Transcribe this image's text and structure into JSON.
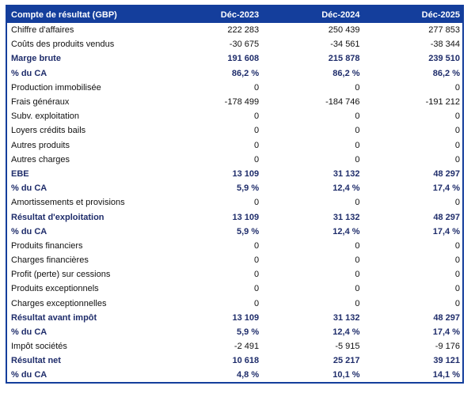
{
  "colors": {
    "header_bg": "#143E9C",
    "header_text": "#FFFFFF",
    "border": "#143E9C",
    "bold_text": "#1F2D6B",
    "body_text": "#111111",
    "background": "#FFFFFF"
  },
  "chart_data": {
    "type": "table",
    "title": "Compte de résultat (GBP)",
    "columns": [
      "Déc-2023",
      "Déc-2024",
      "Déc-2025"
    ],
    "rows": [
      {
        "label": "Chiffre d'affaires",
        "values": [
          "222 283",
          "250 439",
          "277 853"
        ],
        "bold": false
      },
      {
        "label": "Coûts des produits vendus",
        "values": [
          "-30 675",
          "-34 561",
          "-38 344"
        ],
        "bold": false
      },
      {
        "label": "Marge brute",
        "values": [
          "191 608",
          "215 878",
          "239 510"
        ],
        "bold": true
      },
      {
        "label": "% du CA",
        "values": [
          "86,2 %",
          "86,2 %",
          "86,2 %"
        ],
        "bold": true
      },
      {
        "label": "Production immobilisée",
        "values": [
          "0",
          "0",
          "0"
        ],
        "bold": false
      },
      {
        "label": "Frais généraux",
        "values": [
          "-178 499",
          "-184 746",
          "-191 212"
        ],
        "bold": false
      },
      {
        "label": "Subv. exploitation",
        "values": [
          "0",
          "0",
          "0"
        ],
        "bold": false
      },
      {
        "label": "Loyers crédits bails",
        "values": [
          "0",
          "0",
          "0"
        ],
        "bold": false
      },
      {
        "label": "Autres produits",
        "values": [
          "0",
          "0",
          "0"
        ],
        "bold": false
      },
      {
        "label": "Autres charges",
        "values": [
          "0",
          "0",
          "0"
        ],
        "bold": false
      },
      {
        "label": "EBE",
        "values": [
          "13 109",
          "31 132",
          "48 297"
        ],
        "bold": true
      },
      {
        "label": "% du CA",
        "values": [
          "5,9 %",
          "12,4 %",
          "17,4 %"
        ],
        "bold": true
      },
      {
        "label": "Amortissements et provisions",
        "values": [
          "0",
          "0",
          "0"
        ],
        "bold": false
      },
      {
        "label": "Résultat d'exploitation",
        "values": [
          "13 109",
          "31 132",
          "48 297"
        ],
        "bold": true
      },
      {
        "label": "% du CA",
        "values": [
          "5,9 %",
          "12,4 %",
          "17,4 %"
        ],
        "bold": true
      },
      {
        "label": "Produits financiers",
        "values": [
          "0",
          "0",
          "0"
        ],
        "bold": false
      },
      {
        "label": "Charges financières",
        "values": [
          "0",
          "0",
          "0"
        ],
        "bold": false
      },
      {
        "label": "Profit (perte) sur cessions",
        "values": [
          "0",
          "0",
          "0"
        ],
        "bold": false
      },
      {
        "label": "Produits exceptionnels",
        "values": [
          "0",
          "0",
          "0"
        ],
        "bold": false
      },
      {
        "label": "Charges exceptionnelles",
        "values": [
          "0",
          "0",
          "0"
        ],
        "bold": false
      },
      {
        "label": "Résultat avant impôt",
        "values": [
          "13 109",
          "31 132",
          "48 297"
        ],
        "bold": true
      },
      {
        "label": "% du CA",
        "values": [
          "5,9 %",
          "12,4 %",
          "17,4 %"
        ],
        "bold": true
      },
      {
        "label": "Impôt sociétés",
        "values": [
          "-2 491",
          "-5 915",
          "-9 176"
        ],
        "bold": false
      },
      {
        "label": "Résultat net",
        "values": [
          "10 618",
          "25 217",
          "39 121"
        ],
        "bold": true
      },
      {
        "label": "% du CA",
        "values": [
          "4,8 %",
          "10,1 %",
          "14,1 %"
        ],
        "bold": true
      }
    ]
  }
}
